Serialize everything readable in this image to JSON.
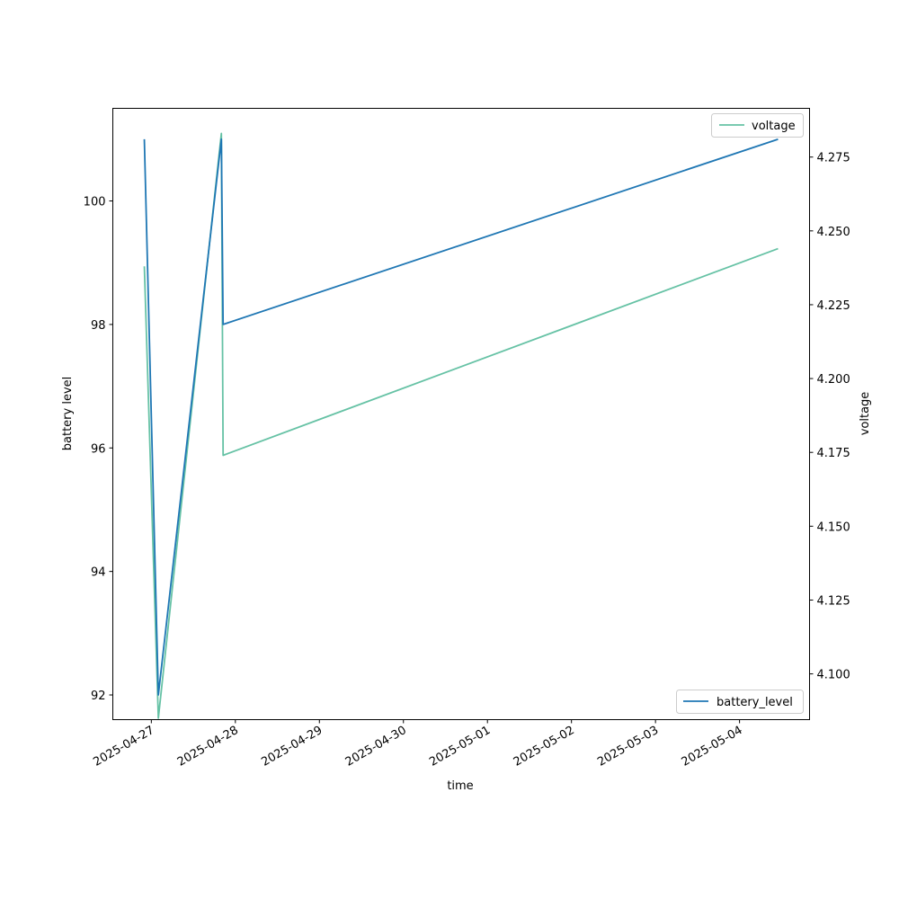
{
  "chart_data": {
    "type": "line",
    "xlabel": "time",
    "left_axis": {
      "label": "battery level",
      "ylim": [
        91.6,
        101.5
      ],
      "ticks": [
        92,
        94,
        96,
        98,
        100
      ],
      "tick_labels": [
        "92",
        "94",
        "96",
        "98",
        "100"
      ]
    },
    "right_axis": {
      "label": "voltage",
      "ylim": [
        4.0845,
        4.2915
      ],
      "ticks": [
        4.1,
        4.125,
        4.15,
        4.175,
        4.2,
        4.225,
        4.25,
        4.275
      ],
      "tick_labels": [
        "4.100",
        "4.125",
        "4.150",
        "4.175",
        "4.200",
        "4.225",
        "4.250",
        "4.275"
      ]
    },
    "x_axis": {
      "xlim": [
        "2025-04-26T13:00",
        "2025-05-04T20:00"
      ],
      "ticks": [
        "2025-04-27",
        "2025-04-28",
        "2025-04-29",
        "2025-04-30",
        "2025-05-01",
        "2025-05-02",
        "2025-05-03",
        "2025-05-04"
      ],
      "tick_labels": [
        "2025-04-27",
        "2025-04-28",
        "2025-04-29",
        "2025-04-30",
        "2025-05-01",
        "2025-05-02",
        "2025-05-03",
        "2025-05-04"
      ]
    },
    "series": [
      {
        "name": "battery_level",
        "axis": "left",
        "color": "#1f77b4",
        "points": [
          {
            "x": "2025-04-26T22:00",
            "y": 101
          },
          {
            "x": "2025-04-27T02:00",
            "y": 92
          },
          {
            "x": "2025-04-27T20:00",
            "y": 101
          },
          {
            "x": "2025-04-27T20:30",
            "y": 98
          },
          {
            "x": "2025-05-04T11:00",
            "y": 101
          }
        ]
      },
      {
        "name": "voltage",
        "axis": "right",
        "color": "#66c2a5",
        "points": [
          {
            "x": "2025-04-26T22:00",
            "y": 4.238
          },
          {
            "x": "2025-04-27T02:00",
            "y": 4.085
          },
          {
            "x": "2025-04-27T20:00",
            "y": 4.283
          },
          {
            "x": "2025-04-27T20:30",
            "y": 4.174
          },
          {
            "x": "2025-05-04T11:00",
            "y": 4.244
          }
        ]
      }
    ],
    "legends": [
      {
        "series": "voltage",
        "placement": "upper right"
      },
      {
        "series": "battery_level",
        "placement": "lower right"
      }
    ],
    "grid": false
  }
}
